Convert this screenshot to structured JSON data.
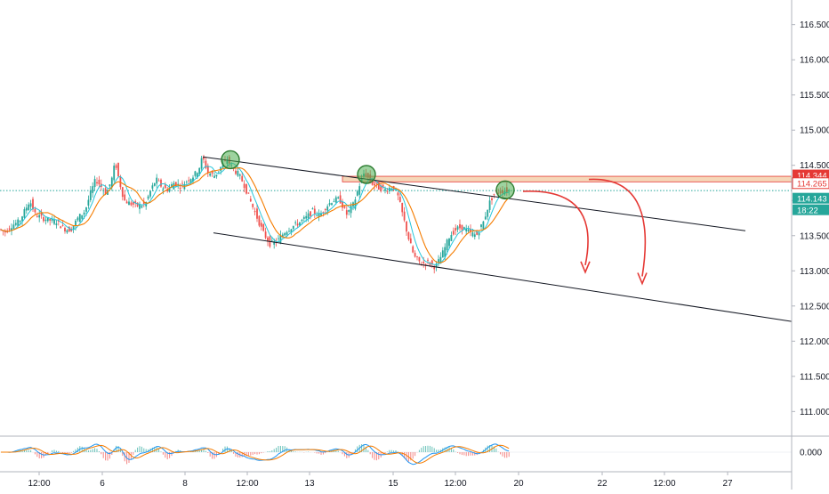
{
  "chart_data": {
    "type": "candlestick",
    "symbol_theme": {
      "up_color": "#26a69a",
      "down_color": "#ef5350",
      "fast_ma_color": "#26c6da",
      "slow_ma_color": "#f57c00",
      "annotation_red": "#e53935",
      "circle_green": "#4caf50",
      "zone_fill": "#f2c9a0",
      "current_price_color": "#26a69a"
    },
    "y_axis": {
      "ylim": [
        110.65,
        116.85
      ],
      "ticks": [
        "116.500",
        "116.000",
        "115.500",
        "115.000",
        "114.500",
        "114.000",
        "113.500",
        "113.000",
        "112.500",
        "112.000",
        "111.500",
        "111.000"
      ]
    },
    "x_axis": {
      "xlim": [
        0,
        890
      ],
      "ticks": [
        {
          "label": "12:00",
          "x": 44
        },
        {
          "label": "6",
          "x": 115
        },
        {
          "label": "8",
          "x": 208
        },
        {
          "label": "12:00",
          "x": 278
        },
        {
          "label": "13",
          "x": 348
        },
        {
          "label": "15",
          "x": 442
        },
        {
          "label": "12:00",
          "x": 512
        },
        {
          "label": "20",
          "x": 583
        },
        {
          "label": "22",
          "x": 677
        },
        {
          "label": "12:00",
          "x": 747
        },
        {
          "label": "27",
          "x": 818
        }
      ]
    },
    "price_path": [
      [
        0,
        113.6
      ],
      [
        8,
        113.55
      ],
      [
        16,
        113.65
      ],
      [
        24,
        113.7
      ],
      [
        30,
        113.85
      ],
      [
        36,
        114.0
      ],
      [
        42,
        113.8
      ],
      [
        50,
        113.75
      ],
      [
        58,
        113.72
      ],
      [
        66,
        113.7
      ],
      [
        74,
        113.6
      ],
      [
        82,
        113.58
      ],
      [
        90,
        113.75
      ],
      [
        98,
        113.85
      ],
      [
        104,
        114.1
      ],
      [
        110,
        114.3
      ],
      [
        116,
        114.2
      ],
      [
        122,
        114.1
      ],
      [
        128,
        114.3
      ],
      [
        132,
        114.55
      ],
      [
        136,
        114.3
      ],
      [
        142,
        114.0
      ],
      [
        150,
        113.95
      ],
      [
        158,
        113.92
      ],
      [
        166,
        113.95
      ],
      [
        172,
        114.15
      ],
      [
        178,
        114.3
      ],
      [
        184,
        114.2
      ],
      [
        190,
        114.15
      ],
      [
        198,
        114.25
      ],
      [
        206,
        114.2
      ],
      [
        214,
        114.3
      ],
      [
        220,
        114.35
      ],
      [
        226,
        114.45
      ],
      [
        230,
        114.62
      ],
      [
        236,
        114.4
      ],
      [
        244,
        114.35
      ],
      [
        252,
        114.5
      ],
      [
        258,
        114.58
      ],
      [
        264,
        114.45
      ],
      [
        270,
        114.38
      ],
      [
        276,
        114.25
      ],
      [
        282,
        114.05
      ],
      [
        290,
        113.8
      ],
      [
        298,
        113.55
      ],
      [
        306,
        113.38
      ],
      [
        314,
        113.42
      ],
      [
        322,
        113.55
      ],
      [
        330,
        113.62
      ],
      [
        338,
        113.68
      ],
      [
        346,
        113.75
      ],
      [
        354,
        113.85
      ],
      [
        362,
        113.78
      ],
      [
        368,
        113.9
      ],
      [
        376,
        114.0
      ],
      [
        384,
        114.02
      ],
      [
        392,
        113.8
      ],
      [
        400,
        113.95
      ],
      [
        406,
        114.2
      ],
      [
        412,
        114.4
      ],
      [
        420,
        114.25
      ],
      [
        428,
        114.18
      ],
      [
        436,
        114.15
      ],
      [
        444,
        114.2
      ],
      [
        450,
        114.05
      ],
      [
        456,
        113.75
      ],
      [
        462,
        113.45
      ],
      [
        468,
        113.2
      ],
      [
        476,
        113.1
      ],
      [
        484,
        113.12
      ],
      [
        492,
        113.05
      ],
      [
        500,
        113.25
      ],
      [
        508,
        113.5
      ],
      [
        516,
        113.6
      ],
      [
        522,
        113.62
      ],
      [
        530,
        113.55
      ],
      [
        538,
        113.5
      ],
      [
        546,
        113.7
      ],
      [
        552,
        113.95
      ],
      [
        558,
        114.1
      ],
      [
        564,
        114.12
      ],
      [
        570,
        114.14
      ],
      [
        574,
        114.14
      ]
    ],
    "annotations": {
      "channel_upper": [
        [
          228,
          114.62
        ],
        [
          838,
          113.57
        ]
      ],
      "channel_lower": [
        [
          240,
          113.54
        ],
        [
          890,
          112.28
        ]
      ],
      "resistance_zone": [
        114.265,
        114.344
      ],
      "circles": [
        [
          259,
          114.58
        ],
        [
          412,
          114.37
        ],
        [
          568,
          114.15
        ]
      ],
      "arrows": [
        {
          "from": [
            588,
            114.13
          ],
          "to": [
            658,
            112.98
          ]
        },
        {
          "from": [
            662,
            114.3
          ],
          "to": [
            722,
            112.82
          ]
        }
      ]
    },
    "price_labels": [
      {
        "value": "114.344",
        "style": "red-filled"
      },
      {
        "value": "114.265",
        "style": "red-outline"
      },
      {
        "value": "114.143",
        "style": "green-filled"
      },
      {
        "value": "18:22",
        "style": "green-filled"
      }
    ],
    "indicator": {
      "type": "macd",
      "tick_label": "0.000"
    }
  }
}
